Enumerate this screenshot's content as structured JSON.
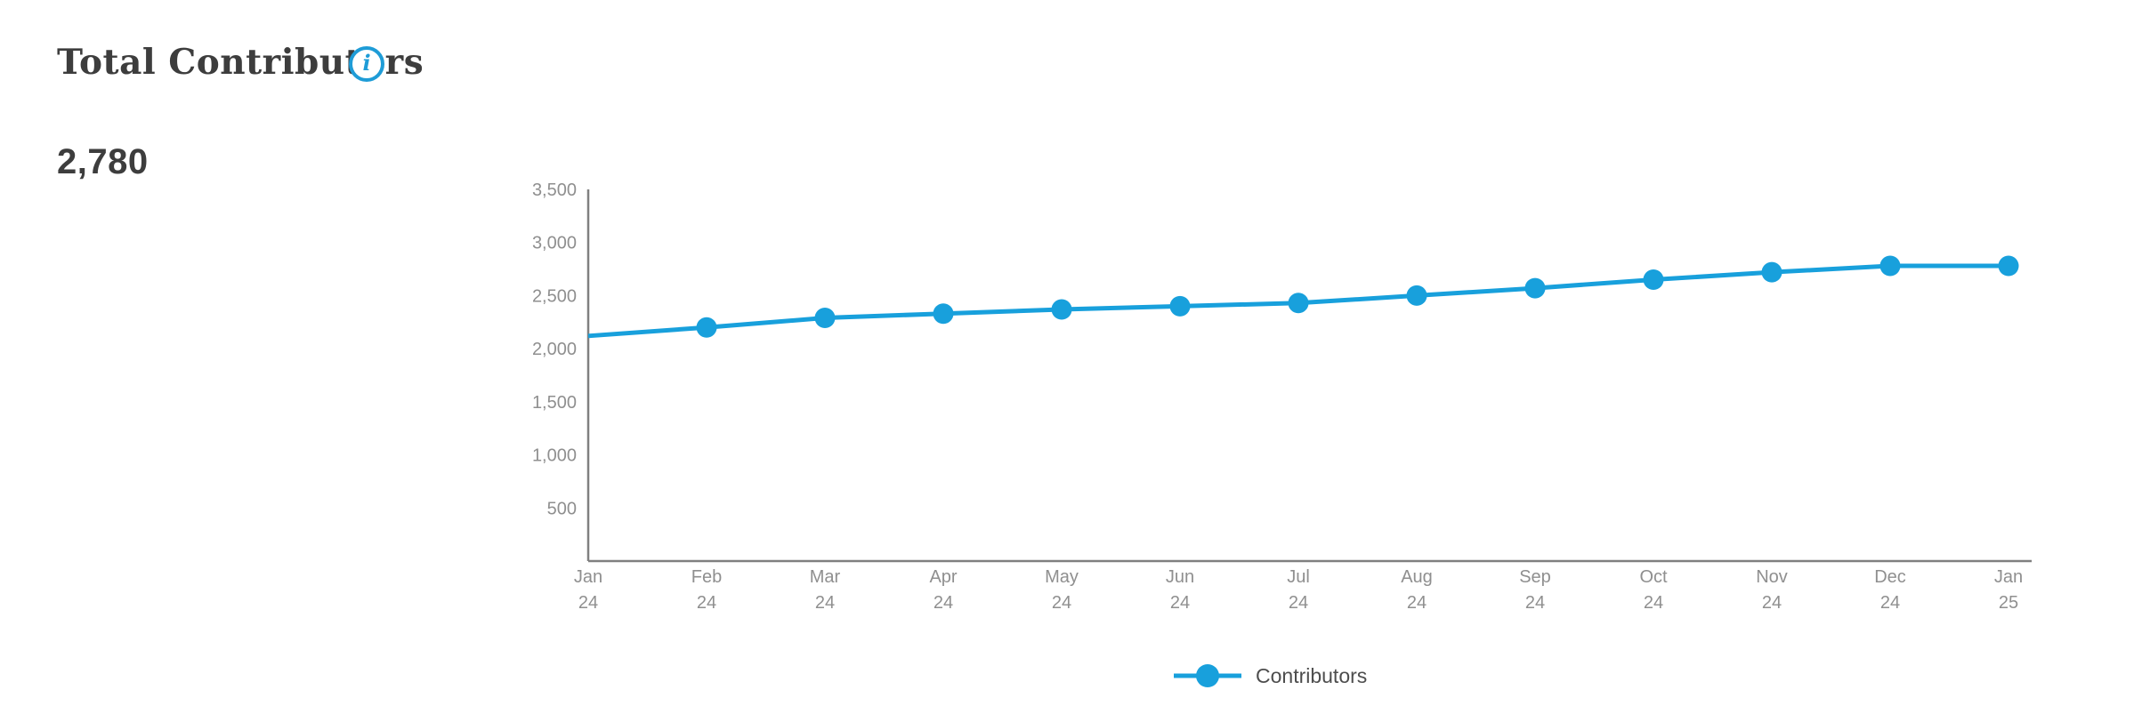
{
  "header": {
    "title": "Total Contributors",
    "headline_value": "2,780"
  },
  "legend": {
    "label": "Contributors"
  },
  "colors": {
    "accent_blue": "#18a0dc",
    "info_icon_blue": "#1e9cd7",
    "axis_line": "#808080",
    "tick_text": "#8f8f8f",
    "title_text": "#3d3d3d",
    "legend_text": "#4d4d4d"
  },
  "icons": {
    "info": "i"
  },
  "chart_data": {
    "type": "line",
    "title": "Total Contributors",
    "categories": [
      [
        "Jan",
        "24"
      ],
      [
        "Feb",
        "24"
      ],
      [
        "Mar",
        "24"
      ],
      [
        "Apr",
        "24"
      ],
      [
        "May",
        "24"
      ],
      [
        "Jun",
        "24"
      ],
      [
        "Jul",
        "24"
      ],
      [
        "Aug",
        "24"
      ],
      [
        "Sep",
        "24"
      ],
      [
        "Oct",
        "24"
      ],
      [
        "Nov",
        "24"
      ],
      [
        "Dec",
        "24"
      ],
      [
        "Jan",
        "25"
      ]
    ],
    "series": [
      {
        "name": "Contributors",
        "values": [
          2120,
          2200,
          2290,
          2330,
          2370,
          2400,
          2430,
          2500,
          2570,
          2650,
          2720,
          2780,
          2780
        ]
      }
    ],
    "ylim": [
      0,
      3500
    ],
    "y_ticks": [
      {
        "value": 500,
        "label": "500"
      },
      {
        "value": 1000,
        "label": "1,000"
      },
      {
        "value": 1500,
        "label": "1,500"
      },
      {
        "value": 2000,
        "label": "2,000"
      },
      {
        "value": 2500,
        "label": "2,500"
      },
      {
        "value": 3000,
        "label": "3,000"
      },
      {
        "value": 3500,
        "label": "3,500"
      }
    ],
    "xlabel": "",
    "ylabel": "",
    "grid": false,
    "legend_position": "bottom-center",
    "first_point_marker_clipped": true
  }
}
